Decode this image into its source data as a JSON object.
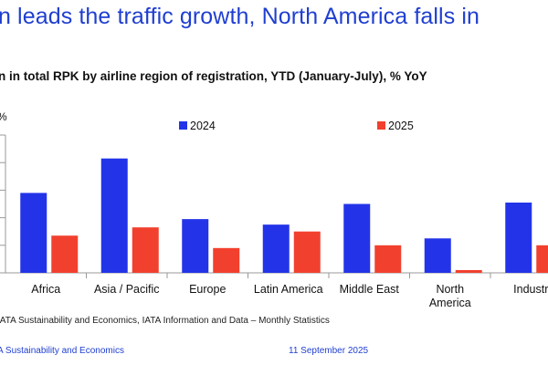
{
  "header": {
    "headline": "n leads the traffic growth, North America falls in"
  },
  "footer": {
    "source": "IATA Sustainability and Economics, IATA Information and Data – Monthly Statistics",
    "organization": "A Sustainability and Economics",
    "date": "11 September 2025"
  },
  "chart_data": {
    "type": "bar",
    "title": "n in total RPK by airline region of registration, YTD (January-July), % YoY",
    "ylabel": "%",
    "ylim": [
      0,
      10
    ],
    "categories": [
      "Africa",
      "Asia / Pacific",
      "Europe",
      "Latin America",
      "Middle East",
      "North America",
      "Industr"
    ],
    "series": [
      {
        "name": "2024",
        "color": "#2334e8",
        "values": [
          5.8,
          8.3,
          3.9,
          3.5,
          5.0,
          2.5,
          5.1
        ]
      },
      {
        "name": "2025",
        "color": "#f2402e",
        "values": [
          2.7,
          3.3,
          1.8,
          3.0,
          2.0,
          0.2,
          2.0
        ]
      }
    ]
  }
}
